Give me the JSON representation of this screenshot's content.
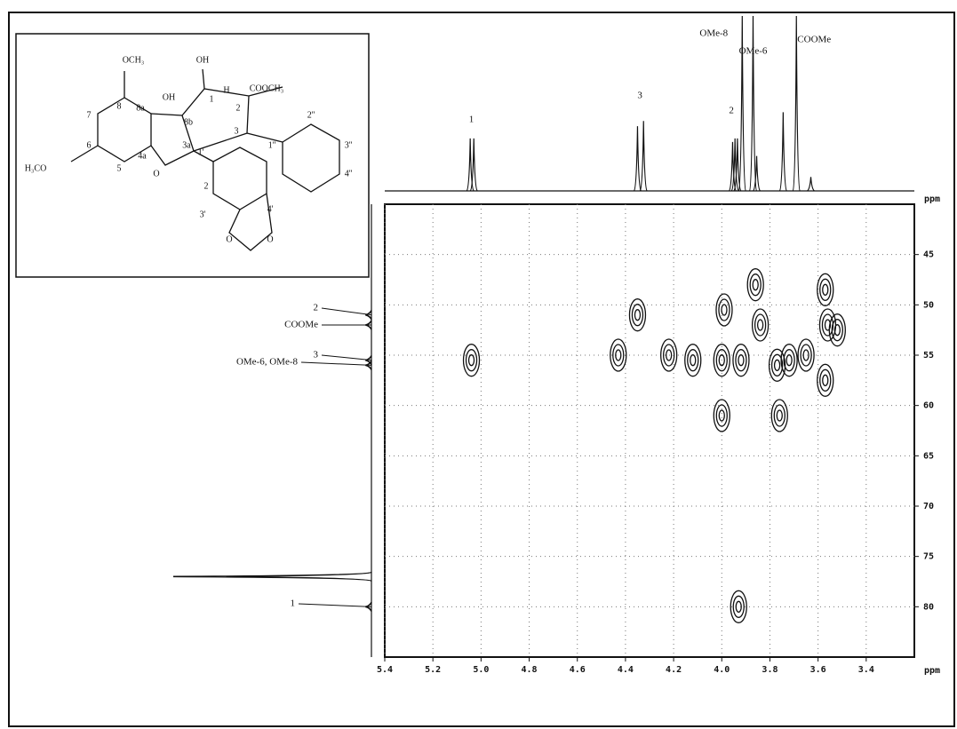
{
  "chart_data": {
    "type": "contour",
    "x_unit": "ppm",
    "y_unit": "ppm",
    "xlim": [
      5.4,
      3.2
    ],
    "ylim": [
      40,
      85
    ],
    "xticks": [
      5.4,
      5.2,
      {
        "value": 5,
        "label": "5.0"
      },
      4.8,
      4.6,
      4.4,
      4.2,
      {
        "value": 4,
        "label": "4.0"
      },
      3.8,
      3.6,
      3.4
    ],
    "yticks": [
      45,
      50,
      55,
      60,
      65,
      70,
      75,
      80
    ],
    "grid": true,
    "peaks": [
      {
        "x": 5.04,
        "y": 55.5
      },
      {
        "x": 4.43,
        "y": 55
      },
      {
        "x": 4.35,
        "y": 51
      },
      {
        "x": 4.22,
        "y": 55
      },
      {
        "x": 4.12,
        "y": 55.5
      },
      {
        "x": 4.0,
        "y": 55.5
      },
      {
        "x": 3.99,
        "y": 50.5
      },
      {
        "x": 3.92,
        "y": 55.5
      },
      {
        "x": 3.84,
        "y": 52
      },
      {
        "x": 3.77,
        "y": 56
      },
      {
        "x": 3.72,
        "y": 55.5
      },
      {
        "x": 3.65,
        "y": 55
      },
      {
        "x": 3.56,
        "y": 52
      },
      {
        "x": 3.52,
        "y": 52.5
      },
      {
        "x": 3.93,
        "y": 80
      },
      {
        "x": 3.86,
        "y": 48
      },
      {
        "x": 3.57,
        "y": 48.5
      },
      {
        "x": 4.0,
        "y": 61
      },
      {
        "x": 3.76,
        "y": 61
      },
      {
        "x": 3.57,
        "y": 57.5
      }
    ],
    "proton_peaks": [
      {
        "x": 5.045,
        "height": 30
      },
      {
        "x": 5.03,
        "height": 30
      },
      {
        "x": 4.35,
        "height": 37
      },
      {
        "x": 4.325,
        "height": 40
      },
      {
        "x": 3.955,
        "height": 28
      },
      {
        "x": 3.945,
        "height": 30
      },
      {
        "x": 3.935,
        "height": 30
      },
      {
        "x": 3.915,
        "height": 100
      },
      {
        "x": 3.87,
        "height": 100
      },
      {
        "x": 3.855,
        "height": 20
      },
      {
        "x": 3.745,
        "height": 45
      },
      {
        "x": 3.69,
        "height": 100
      },
      {
        "x": 3.63,
        "height": 8
      }
    ],
    "carbon_peaks": [
      {
        "y": 51,
        "height": 3
      },
      {
        "y": 52,
        "height": 3
      },
      {
        "y": 55.5,
        "height": 3
      },
      {
        "y": 56,
        "height": 3
      },
      {
        "y": 77,
        "height": 100
      },
      {
        "y": 80,
        "height": 3
      }
    ],
    "proton_labels": [
      {
        "text": "1",
        "x": 5.04
      },
      {
        "text": "3",
        "x": 4.34
      },
      {
        "text": "2",
        "x": 3.96
      },
      {
        "text": "OMe-8",
        "x": 3.915
      },
      {
        "text": "OMe-6",
        "x": 3.87
      },
      {
        "text": "COOMe",
        "x": 3.69
      }
    ],
    "carbon_labels": [
      {
        "text": "2",
        "y": 51
      },
      {
        "text": "COOMe",
        "y": 52
      },
      {
        "text": "3",
        "y": 55.5
      },
      {
        "text": "OMe-6, OMe-8",
        "y": 56
      },
      {
        "text": "1",
        "y": 80
      }
    ]
  },
  "molecule": {
    "labels": [
      "OCH₃",
      "OH",
      "OH",
      "H",
      "COOCH₃",
      "H₃CO",
      "8",
      "7",
      "6",
      "5",
      "4a",
      "8a",
      "8b",
      "3a",
      "1",
      "2",
      "3",
      "1''",
      "2''",
      "3''",
      "4''",
      "1'",
      "2",
      "3'",
      "4'",
      "O",
      "O",
      "O"
    ]
  }
}
